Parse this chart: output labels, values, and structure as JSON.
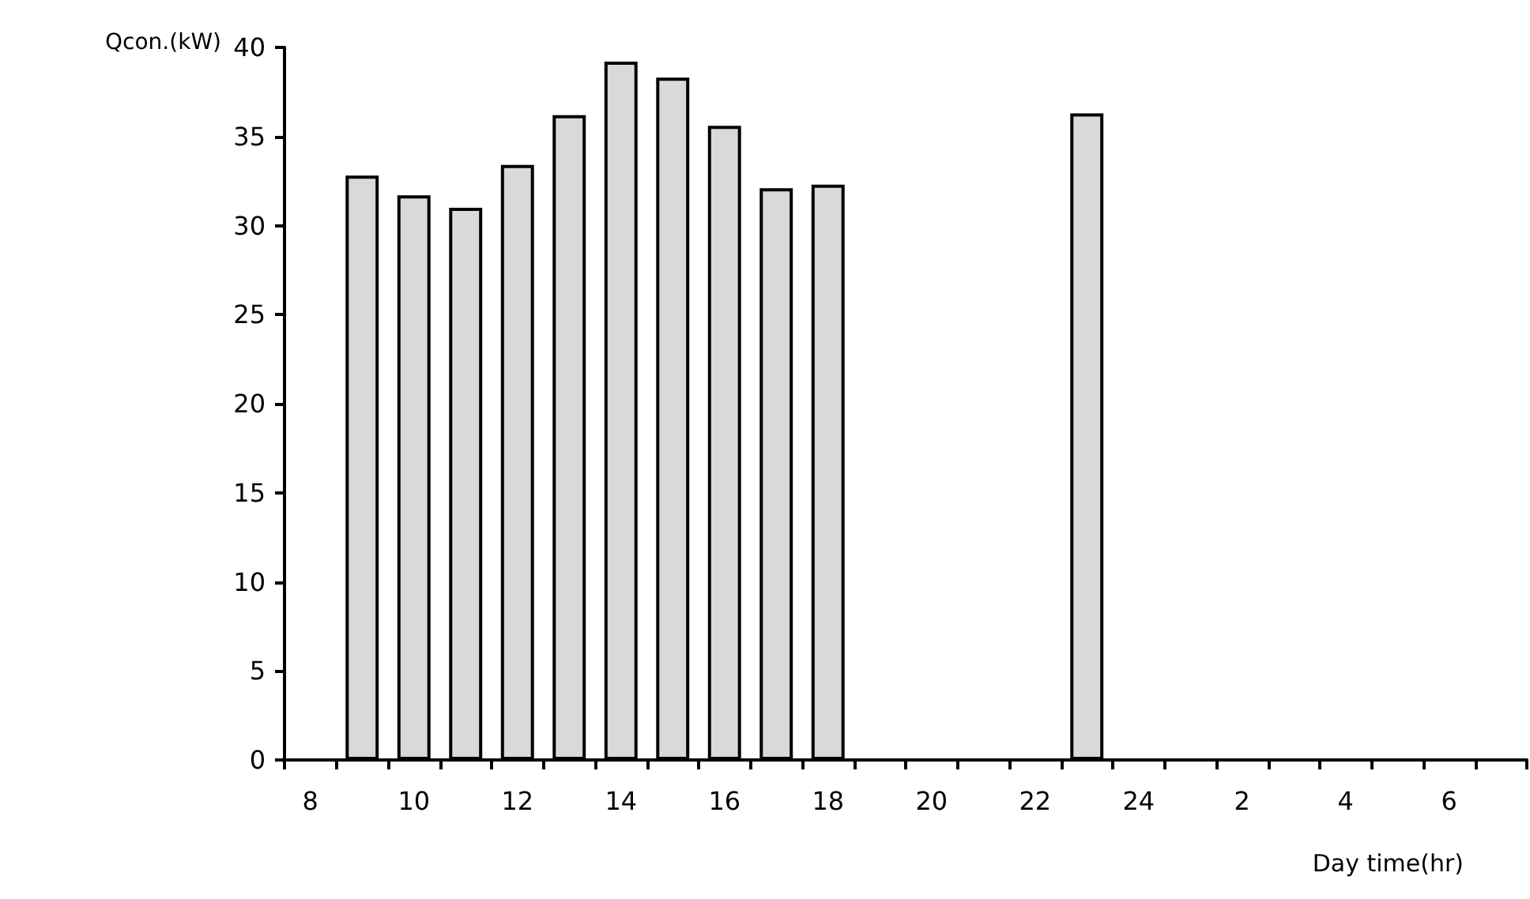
{
  "chart_data": {
    "type": "bar",
    "xlabel": "Day time(hr)",
    "ylabel": "Qcon.(kW)",
    "categories": [
      "8",
      null,
      "10",
      null,
      "12",
      null,
      "14",
      null,
      "16",
      null,
      "18",
      null,
      "20",
      null,
      "22",
      null,
      "24",
      null,
      "2",
      null,
      "4",
      null,
      "6",
      null
    ],
    "values": [
      null,
      32.8,
      31.7,
      31.0,
      33.4,
      36.2,
      39.2,
      38.3,
      35.6,
      32.1,
      32.3,
      null,
      null,
      null,
      null,
      36.3,
      null,
      null,
      null,
      null,
      null,
      null,
      null,
      null
    ],
    "color": "#d9d9d9",
    "ylim": [
      0,
      40
    ],
    "yticks": [
      0,
      5,
      10,
      15,
      20,
      25,
      30,
      35,
      40
    ]
  }
}
